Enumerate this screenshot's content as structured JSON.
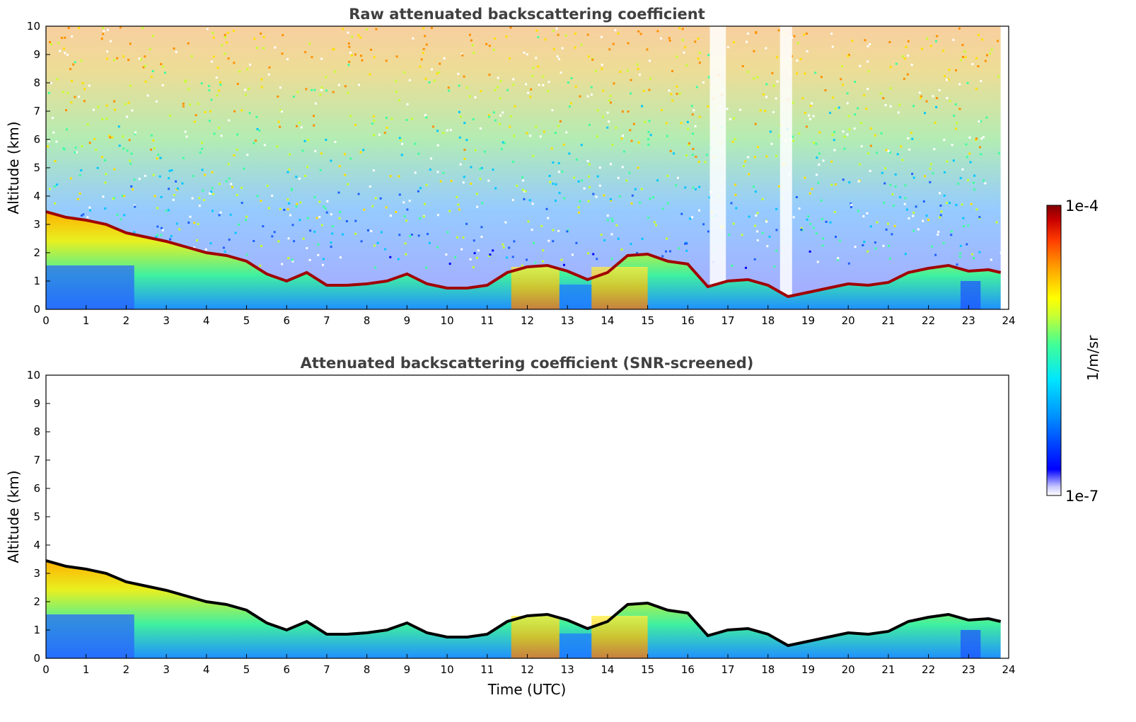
{
  "chart_data": [
    {
      "type": "heatmap",
      "title": "Raw attenuated backscattering coefficient",
      "xlabel": "",
      "ylabel": "Altitude (km)",
      "xlim": [
        0,
        24
      ],
      "ylim": [
        0,
        10
      ],
      "x_ticks": [
        "0",
        "1",
        "2",
        "3",
        "4",
        "5",
        "6",
        "7",
        "8",
        "9",
        "10",
        "11",
        "12",
        "13",
        "14",
        "15",
        "16",
        "17",
        "18",
        "19",
        "20",
        "21",
        "22",
        "23",
        "24"
      ],
      "y_ticks": [
        "0",
        "1",
        "2",
        "3",
        "4",
        "5",
        "6",
        "7",
        "8",
        "9",
        "10"
      ],
      "x_data_extent": [
        0,
        23.8
      ],
      "layer_top_km": [
        [
          0,
          3.45
        ],
        [
          0.5,
          3.25
        ],
        [
          1.0,
          3.15
        ],
        [
          1.5,
          3.0
        ],
        [
          2.0,
          2.7
        ],
        [
          2.5,
          2.55
        ],
        [
          3.0,
          2.4
        ],
        [
          3.5,
          2.2
        ],
        [
          4.0,
          2.0
        ],
        [
          4.5,
          1.9
        ],
        [
          5.0,
          1.7
        ],
        [
          5.5,
          1.25
        ],
        [
          6.0,
          1.0
        ],
        [
          6.5,
          1.3
        ],
        [
          7.0,
          0.85
        ],
        [
          7.5,
          0.85
        ],
        [
          8.0,
          0.9
        ],
        [
          8.5,
          1.0
        ],
        [
          9.0,
          1.25
        ],
        [
          9.5,
          0.9
        ],
        [
          10.0,
          0.75
        ],
        [
          10.5,
          0.75
        ],
        [
          11.0,
          0.85
        ],
        [
          11.5,
          1.3
        ],
        [
          12.0,
          1.5
        ],
        [
          12.5,
          1.55
        ],
        [
          13.0,
          1.35
        ],
        [
          13.5,
          1.05
        ],
        [
          14.0,
          1.3
        ],
        [
          14.5,
          1.9
        ],
        [
          15.0,
          1.95
        ],
        [
          15.5,
          1.7
        ],
        [
          16.0,
          1.6
        ],
        [
          16.5,
          0.8
        ],
        [
          17.0,
          1.0
        ],
        [
          17.5,
          1.05
        ],
        [
          18.0,
          0.85
        ],
        [
          18.5,
          0.45
        ],
        [
          19.0,
          0.6
        ],
        [
          19.5,
          0.75
        ],
        [
          20.0,
          0.9
        ],
        [
          20.5,
          0.85
        ],
        [
          21.0,
          0.95
        ],
        [
          21.5,
          1.3
        ],
        [
          22.0,
          1.45
        ],
        [
          22.5,
          1.55
        ],
        [
          23.0,
          1.35
        ],
        [
          23.5,
          1.4
        ],
        [
          23.8,
          1.3
        ]
      ],
      "no_data_bands_utc": [
        [
          16.55,
          16.95
        ],
        [
          18.3,
          18.6
        ]
      ]
    },
    {
      "type": "heatmap",
      "title": "Attenuated backscattering coefficient (SNR-screened)",
      "xlabel": "Time (UTC)",
      "ylabel": "Altitude (km)",
      "xlim": [
        0,
        24
      ],
      "ylim": [
        0,
        10
      ],
      "x_ticks": [
        "0",
        "1",
        "2",
        "3",
        "4",
        "5",
        "6",
        "7",
        "8",
        "9",
        "10",
        "11",
        "12",
        "13",
        "14",
        "15",
        "16",
        "17",
        "18",
        "19",
        "20",
        "21",
        "22",
        "23",
        "24"
      ],
      "y_ticks": [
        "0",
        "1",
        "2",
        "3",
        "4",
        "5",
        "6",
        "7",
        "8",
        "9",
        "10"
      ],
      "x_data_extent": [
        0,
        23.8
      ]
    }
  ],
  "colorbar": {
    "label": "1/m/sr",
    "max_label": "1e-4",
    "min_label": "1e-7",
    "scale": "log",
    "range": [
      1e-07,
      0.0001
    ],
    "colormap": [
      "#ffffff",
      "#c8c8ff",
      "#0000ff",
      "#0096ff",
      "#00e6ff",
      "#40ff96",
      "#c8ff32",
      "#ffff00",
      "#ffa500",
      "#ff3c00",
      "#c80000",
      "#800000"
    ]
  }
}
